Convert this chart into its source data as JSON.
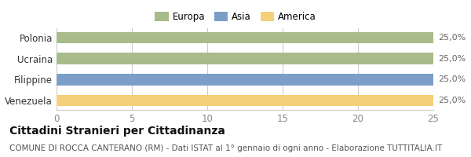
{
  "categories": [
    "Polonia",
    "Ucraina",
    "Filippine",
    "Venezuela"
  ],
  "values": [
    25.0,
    25.0,
    25.0,
    25.0
  ],
  "bar_colors": [
    "#a8bb8a",
    "#a8bb8a",
    "#7b9ec7",
    "#f5d07a"
  ],
  "continent_labels": [
    "Europa",
    "Asia",
    "America"
  ],
  "continent_colors": [
    "#a8bb8a",
    "#7b9ec7",
    "#f5d07a"
  ],
  "bar_labels": [
    "25,0%",
    "25,0%",
    "25,0%",
    "25,0%"
  ],
  "xlim": [
    0,
    25
  ],
  "xticks": [
    0,
    5,
    10,
    15,
    20,
    25
  ],
  "title": "Cittadini Stranieri per Cittadinanza",
  "subtitle": "COMUNE DI ROCCA CANTERANO (RM) - Dati ISTAT al 1° gennaio di ogni anno - Elaborazione TUTTITALIA.IT",
  "title_fontsize": 10,
  "subtitle_fontsize": 7.5,
  "bar_label_fontsize": 8,
  "axis_label_fontsize": 8.5,
  "legend_fontsize": 8.5,
  "background_color": "#ffffff",
  "grid_color": "#cccccc",
  "bar_height": 0.55
}
